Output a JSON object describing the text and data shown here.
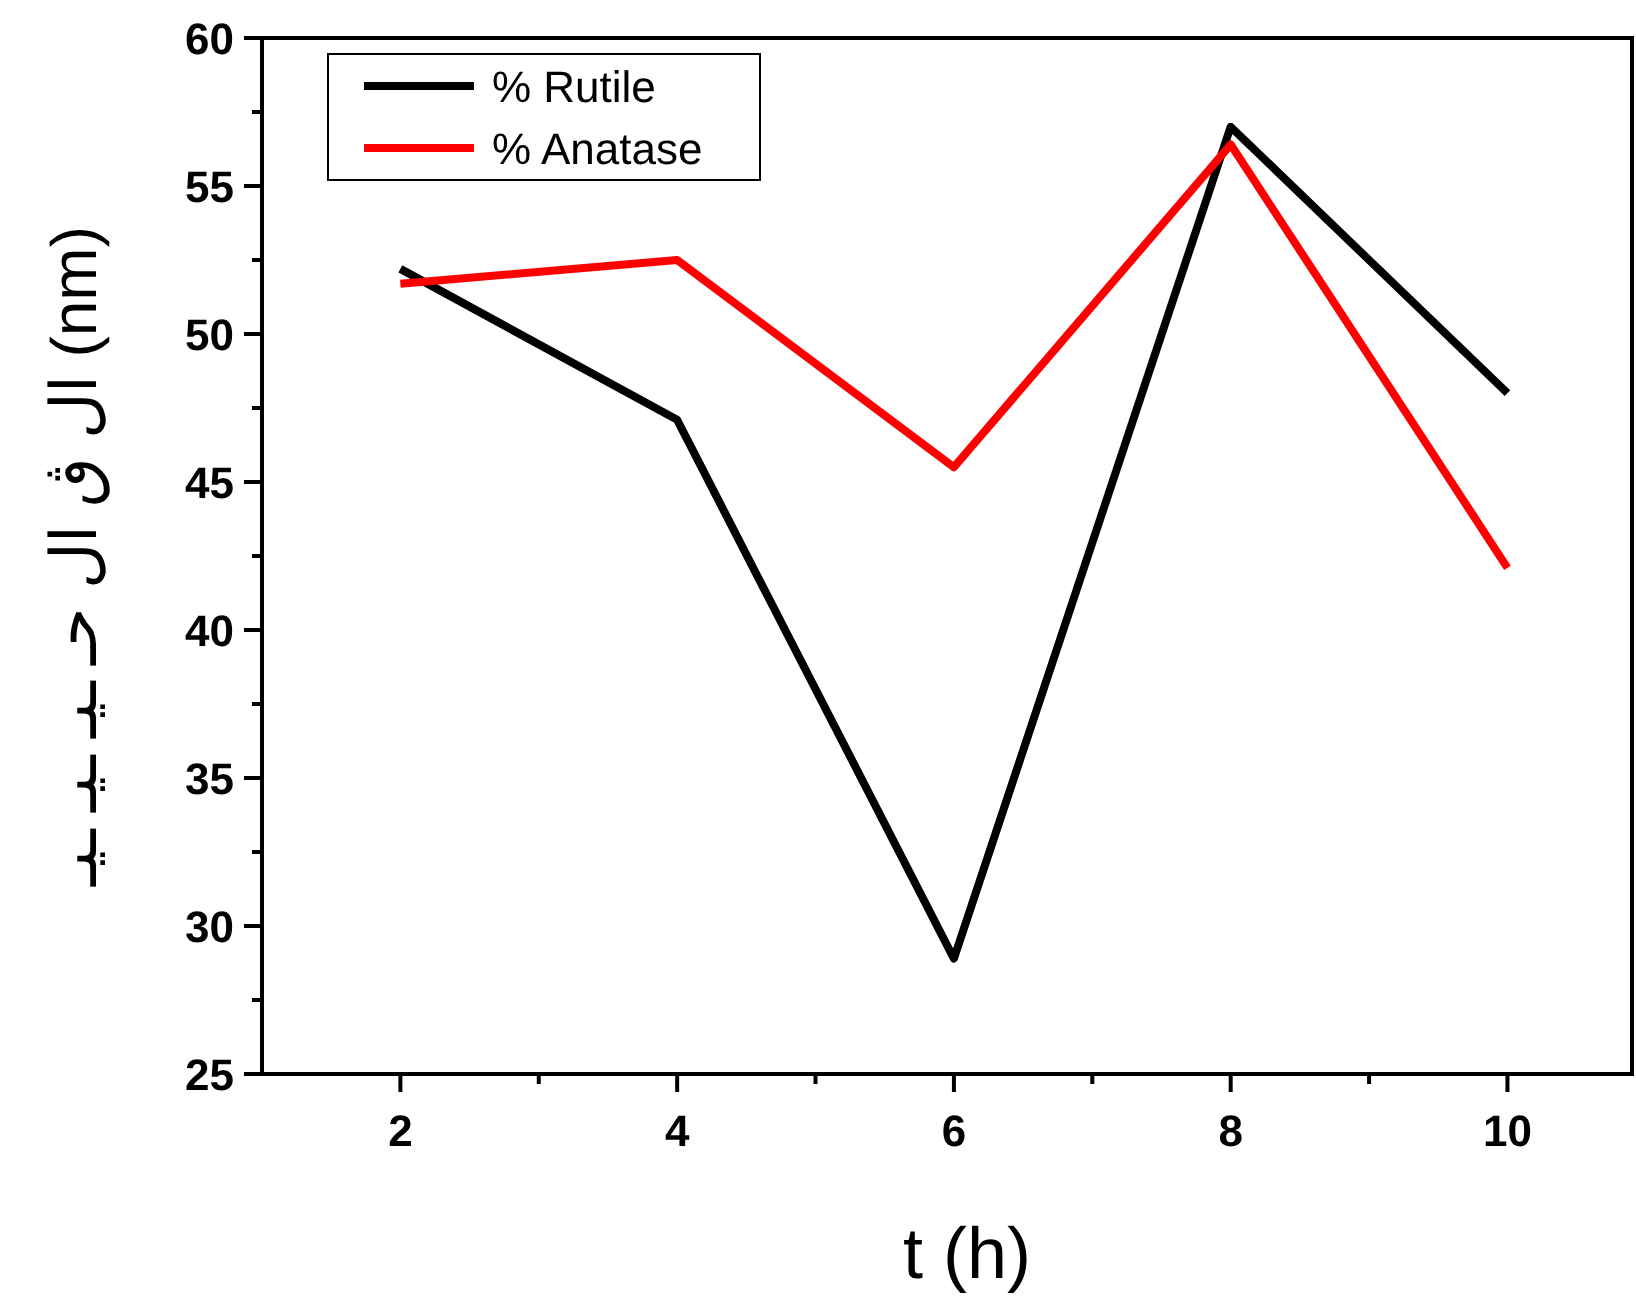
{
  "chart_data": {
    "type": "line",
    "xlabel": "t (h)",
    "ylabel": "ال ڨ ال حـ ـيـ ـيـ ـيـ (nm)",
    "x": [
      2,
      4,
      6,
      8,
      10
    ],
    "series": [
      {
        "name": "% Rutile",
        "color": "#000000",
        "values": [
          52.2,
          47.1,
          28.9,
          57.0,
          48.0
        ]
      },
      {
        "name": "% Anatase",
        "color": "#ff0000",
        "values": [
          51.7,
          52.5,
          45.5,
          56.4,
          42.1
        ]
      }
    ],
    "xlim": [
      1,
      10.9
    ],
    "xticks": [
      2,
      {
        "value": 3,
        "label": null
      },
      4,
      {
        "value": 5,
        "label": null
      },
      6,
      {
        "value": 7,
        "label": null
      },
      8,
      {
        "value": 9,
        "label": null
      },
      10
    ],
    "ylim": [
      25,
      60
    ],
    "yticks": [
      25,
      {
        "value": 27.5,
        "label": null
      },
      30,
      {
        "value": 32.5,
        "label": null
      },
      35,
      {
        "value": 37.5,
        "label": null
      },
      40,
      {
        "value": 42.5,
        "label": null
      },
      45,
      {
        "value": 47.5,
        "label": null
      },
      50,
      {
        "value": 52.5,
        "label": null
      },
      55,
      {
        "value": 57.5,
        "label": null
      },
      60
    ],
    "grid": false,
    "legend": "top left",
    "marker": "none",
    "line_style": "solid"
  }
}
